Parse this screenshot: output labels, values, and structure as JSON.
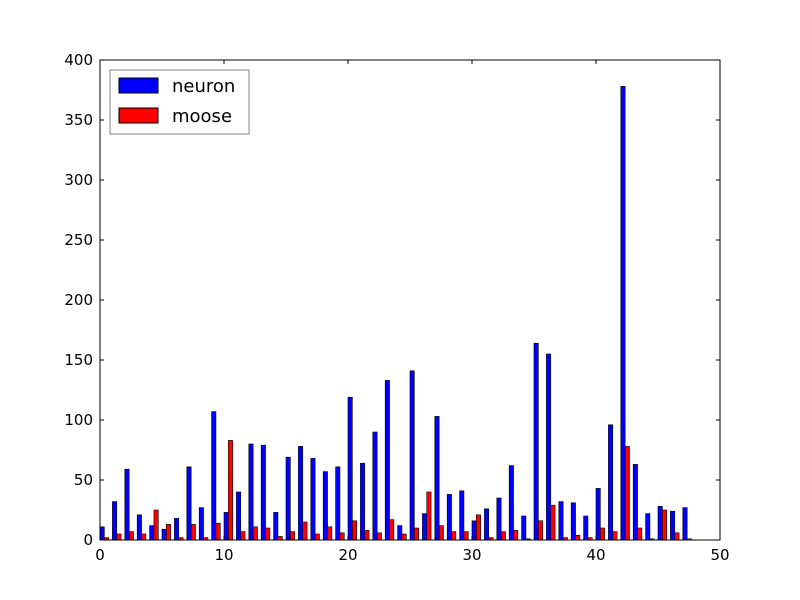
{
  "chart_data": {
    "type": "bar",
    "title": "",
    "xlabel": "",
    "ylabel": "",
    "xlim": [
      0,
      50
    ],
    "ylim": [
      0,
      400
    ],
    "x_ticks": [
      "0",
      "10",
      "20",
      "30",
      "40",
      "50"
    ],
    "y_ticks": [
      "0",
      "50",
      "100",
      "150",
      "200",
      "250",
      "300",
      "350",
      "400"
    ],
    "grid": false,
    "legend_position": "top-left",
    "categories": [
      0,
      1,
      2,
      3,
      4,
      5,
      6,
      7,
      8,
      9,
      10,
      11,
      12,
      13,
      14,
      15,
      16,
      17,
      18,
      19,
      20,
      21,
      22,
      23,
      24,
      25,
      26,
      27,
      28,
      29,
      30,
      31,
      32,
      33,
      34,
      35,
      36,
      37,
      38,
      39,
      40,
      41,
      42,
      43,
      44,
      45,
      46,
      47
    ],
    "series": [
      {
        "name": "neuron",
        "color": "#0000ff",
        "values": [
          11,
          32,
          59,
          21,
          12,
          9,
          18,
          61,
          27,
          107,
          23,
          40,
          80,
          79,
          23,
          69,
          78,
          68,
          57,
          61,
          119,
          64,
          90,
          133,
          12,
          141,
          22,
          103,
          38,
          41,
          16,
          26,
          35,
          62,
          20,
          164,
          155,
          32,
          31,
          20,
          43,
          96,
          378,
          63,
          22,
          28,
          24,
          27
        ]
      },
      {
        "name": "moose",
        "color": "#ff0000",
        "values": [
          2,
          5,
          7,
          5,
          25,
          13,
          2,
          13,
          2,
          14,
          83,
          7,
          11,
          10,
          3,
          7,
          15,
          5,
          11,
          6,
          16,
          8,
          6,
          17,
          5,
          10,
          40,
          12,
          7,
          7,
          21,
          2,
          7,
          8,
          1,
          16,
          29,
          2,
          4,
          2,
          10,
          7,
          78,
          10,
          1,
          25,
          6,
          1
        ]
      }
    ]
  }
}
